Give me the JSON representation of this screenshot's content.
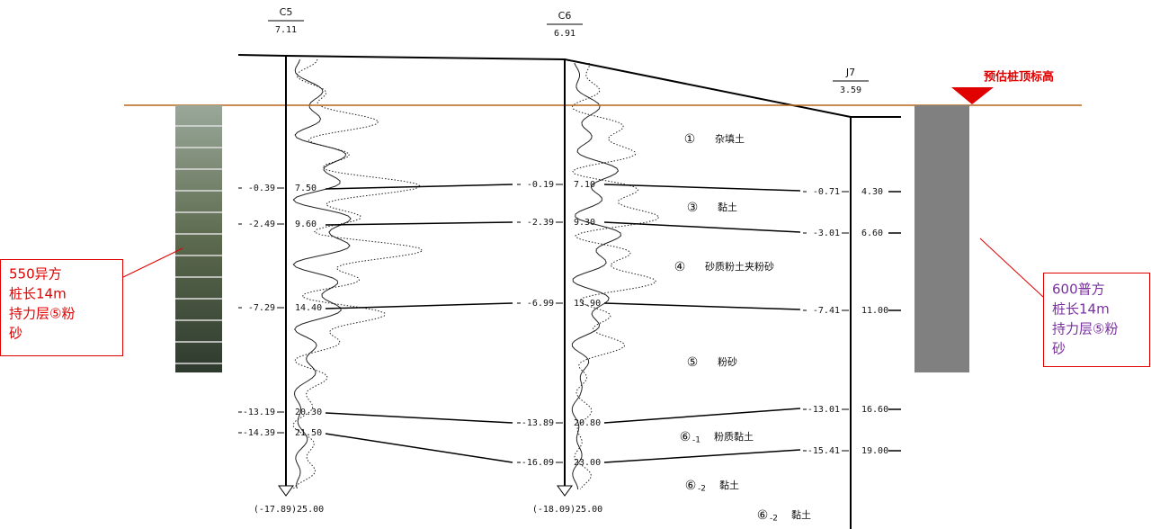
{
  "boreholes": [
    {
      "name": "C5",
      "elevation": "7.11",
      "layers": [
        {
          "elevation": "-0.39",
          "depth": "7.50"
        },
        {
          "elevation": "-2.49",
          "depth": "9.60"
        },
        {
          "elevation": "-7.29",
          "depth": "14.40"
        },
        {
          "elevation": "-13.19",
          "depth": "20.30"
        },
        {
          "elevation": "-14.39",
          "depth": "21.50"
        }
      ],
      "bottom": "(-17.89)25.00"
    },
    {
      "name": "C6",
      "elevation": "6.91",
      "layers": [
        {
          "elevation": "-0.19",
          "depth": "7.10"
        },
        {
          "elevation": "-2.39",
          "depth": "9.30"
        },
        {
          "elevation": "-6.99",
          "depth": "13.90"
        },
        {
          "elevation": "-13.89",
          "depth": "20.80"
        },
        {
          "elevation": "-16.09",
          "depth": "23.00"
        }
      ],
      "bottom": "(-18.09)25.00"
    },
    {
      "name": "J7",
      "elevation": "3.59",
      "layers": [
        {
          "elevation": "-0.71",
          "depth": "4.30"
        },
        {
          "elevation": "-3.01",
          "depth": "6.60"
        },
        {
          "elevation": "-7.41",
          "depth": "11.00"
        },
        {
          "elevation": "-13.01",
          "depth": "16.60"
        },
        {
          "elevation": "-15.41",
          "depth": "19.00"
        }
      ]
    }
  ],
  "strata": [
    {
      "symbol": "①",
      "name": "杂填土"
    },
    {
      "symbol": "③",
      "name": "黏土"
    },
    {
      "symbol": "④",
      "name": "砂质粉土夹粉砂"
    },
    {
      "symbol": "⑤",
      "name": "粉砂"
    },
    {
      "symbol": "⑥",
      "sub": "-1",
      "name": "粉质黏土"
    },
    {
      "symbol": "⑥",
      "sub": "-2",
      "name": "黏土"
    },
    {
      "symbol": "⑥",
      "sub": "-2",
      "name": "黏土"
    }
  ],
  "pile_top_label": "预估桩顶标高",
  "left_note": [
    "550异方",
    "桩长14m",
    "持力层⑤粉",
    "砂"
  ],
  "right_note": [
    "600普方",
    "桩长14m",
    "持力层⑤粉",
    "砂"
  ]
}
